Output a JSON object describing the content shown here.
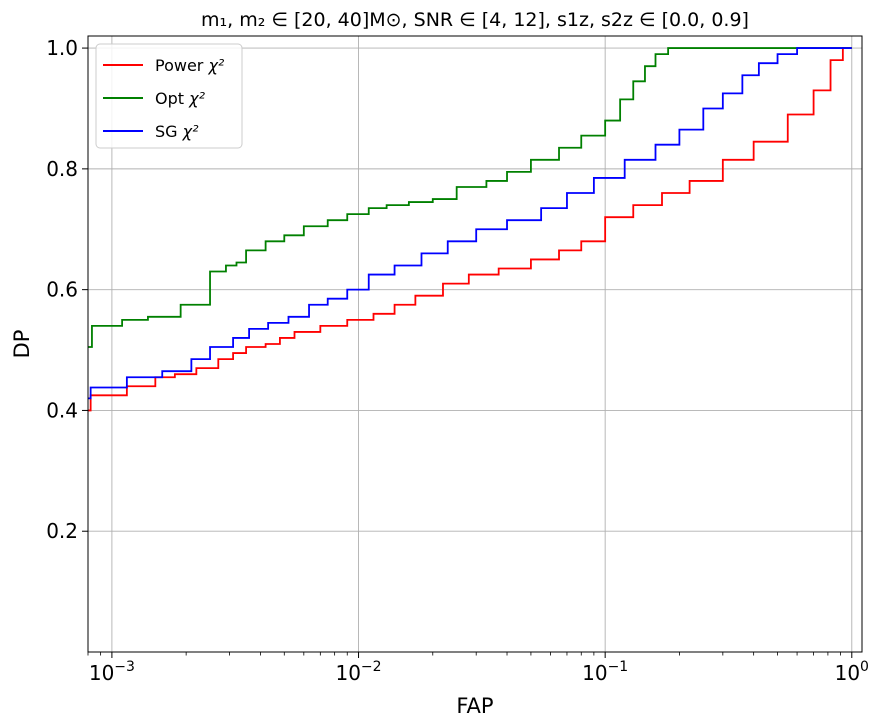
{
  "chart_data": {
    "type": "line",
    "step": true,
    "title": "m₁, m₂ ∈ [20, 40]M⊙,  SNR ∈ [4, 12],  s1z, s2z ∈ [0.0, 0.9]",
    "xlabel": "FAP",
    "ylabel": "DP",
    "xscale": "log",
    "xlim": [
      0.0008,
      1.1
    ],
    "ylim": [
      0.0,
      1.02
    ],
    "x_ticks": [
      {
        "value": 0.001,
        "base": "10",
        "exp": "−3"
      },
      {
        "value": 0.01,
        "base": "10",
        "exp": "−2"
      },
      {
        "value": 0.1,
        "base": "10",
        "exp": "−1"
      },
      {
        "value": 1.0,
        "base": "10",
        "exp": "0"
      }
    ],
    "y_ticks": [
      {
        "value": 0.2,
        "label": "0.2"
      },
      {
        "value": 0.4,
        "label": "0.4"
      },
      {
        "value": 0.6,
        "label": "0.6"
      },
      {
        "value": 0.8,
        "label": "0.8"
      },
      {
        "value": 1.0,
        "label": "1.0"
      }
    ],
    "grid": true,
    "legend_position": "top-left",
    "series": [
      {
        "name": "Power",
        "name_math": "χ²",
        "color": "#ff0000",
        "points": [
          [
            0.0008,
            0.4
          ],
          [
            0.00082,
            0.425
          ],
          [
            0.00115,
            0.44
          ],
          [
            0.0015,
            0.455
          ],
          [
            0.0018,
            0.46
          ],
          [
            0.0022,
            0.47
          ],
          [
            0.0027,
            0.485
          ],
          [
            0.0031,
            0.495
          ],
          [
            0.0035,
            0.505
          ],
          [
            0.0042,
            0.51
          ],
          [
            0.0048,
            0.52
          ],
          [
            0.0055,
            0.53
          ],
          [
            0.007,
            0.54
          ],
          [
            0.009,
            0.55
          ],
          [
            0.0115,
            0.56
          ],
          [
            0.014,
            0.575
          ],
          [
            0.017,
            0.59
          ],
          [
            0.022,
            0.61
          ],
          [
            0.028,
            0.625
          ],
          [
            0.037,
            0.635
          ],
          [
            0.05,
            0.65
          ],
          [
            0.065,
            0.665
          ],
          [
            0.08,
            0.68
          ],
          [
            0.1,
            0.72
          ],
          [
            0.13,
            0.74
          ],
          [
            0.17,
            0.76
          ],
          [
            0.22,
            0.78
          ],
          [
            0.3,
            0.815
          ],
          [
            0.4,
            0.845
          ],
          [
            0.55,
            0.89
          ],
          [
            0.7,
            0.93
          ],
          [
            0.82,
            0.98
          ],
          [
            0.92,
            1.0
          ],
          [
            1.0,
            1.0
          ]
        ]
      },
      {
        "name": "Opt",
        "name_math": "χ²",
        "color": "#008000",
        "points": [
          [
            0.0008,
            0.505
          ],
          [
            0.00083,
            0.54
          ],
          [
            0.0011,
            0.55
          ],
          [
            0.0014,
            0.555
          ],
          [
            0.0019,
            0.575
          ],
          [
            0.0025,
            0.63
          ],
          [
            0.0029,
            0.64
          ],
          [
            0.0032,
            0.645
          ],
          [
            0.0035,
            0.665
          ],
          [
            0.0042,
            0.68
          ],
          [
            0.005,
            0.69
          ],
          [
            0.006,
            0.705
          ],
          [
            0.0075,
            0.715
          ],
          [
            0.009,
            0.725
          ],
          [
            0.011,
            0.735
          ],
          [
            0.013,
            0.74
          ],
          [
            0.016,
            0.745
          ],
          [
            0.02,
            0.75
          ],
          [
            0.025,
            0.77
          ],
          [
            0.033,
            0.78
          ],
          [
            0.04,
            0.795
          ],
          [
            0.05,
            0.815
          ],
          [
            0.065,
            0.835
          ],
          [
            0.08,
            0.855
          ],
          [
            0.1,
            0.88
          ],
          [
            0.115,
            0.915
          ],
          [
            0.13,
            0.945
          ],
          [
            0.145,
            0.97
          ],
          [
            0.16,
            0.99
          ],
          [
            0.18,
            1.0
          ],
          [
            1.0,
            1.0
          ]
        ]
      },
      {
        "name": "SG",
        "name_math": "χ²",
        "color": "#0000ff",
        "points": [
          [
            0.0008,
            0.42
          ],
          [
            0.00082,
            0.438
          ],
          [
            0.00115,
            0.455
          ],
          [
            0.0016,
            0.465
          ],
          [
            0.0021,
            0.485
          ],
          [
            0.0025,
            0.505
          ],
          [
            0.0031,
            0.52
          ],
          [
            0.0036,
            0.535
          ],
          [
            0.0043,
            0.545
          ],
          [
            0.0052,
            0.555
          ],
          [
            0.0063,
            0.575
          ],
          [
            0.0075,
            0.585
          ],
          [
            0.009,
            0.6
          ],
          [
            0.011,
            0.625
          ],
          [
            0.014,
            0.64
          ],
          [
            0.018,
            0.66
          ],
          [
            0.023,
            0.68
          ],
          [
            0.03,
            0.7
          ],
          [
            0.04,
            0.715
          ],
          [
            0.055,
            0.735
          ],
          [
            0.07,
            0.76
          ],
          [
            0.09,
            0.785
          ],
          [
            0.12,
            0.815
          ],
          [
            0.16,
            0.84
          ],
          [
            0.2,
            0.865
          ],
          [
            0.25,
            0.9
          ],
          [
            0.3,
            0.925
          ],
          [
            0.36,
            0.955
          ],
          [
            0.42,
            0.975
          ],
          [
            0.5,
            0.99
          ],
          [
            0.6,
            1.0
          ],
          [
            1.0,
            1.0
          ]
        ]
      }
    ]
  }
}
